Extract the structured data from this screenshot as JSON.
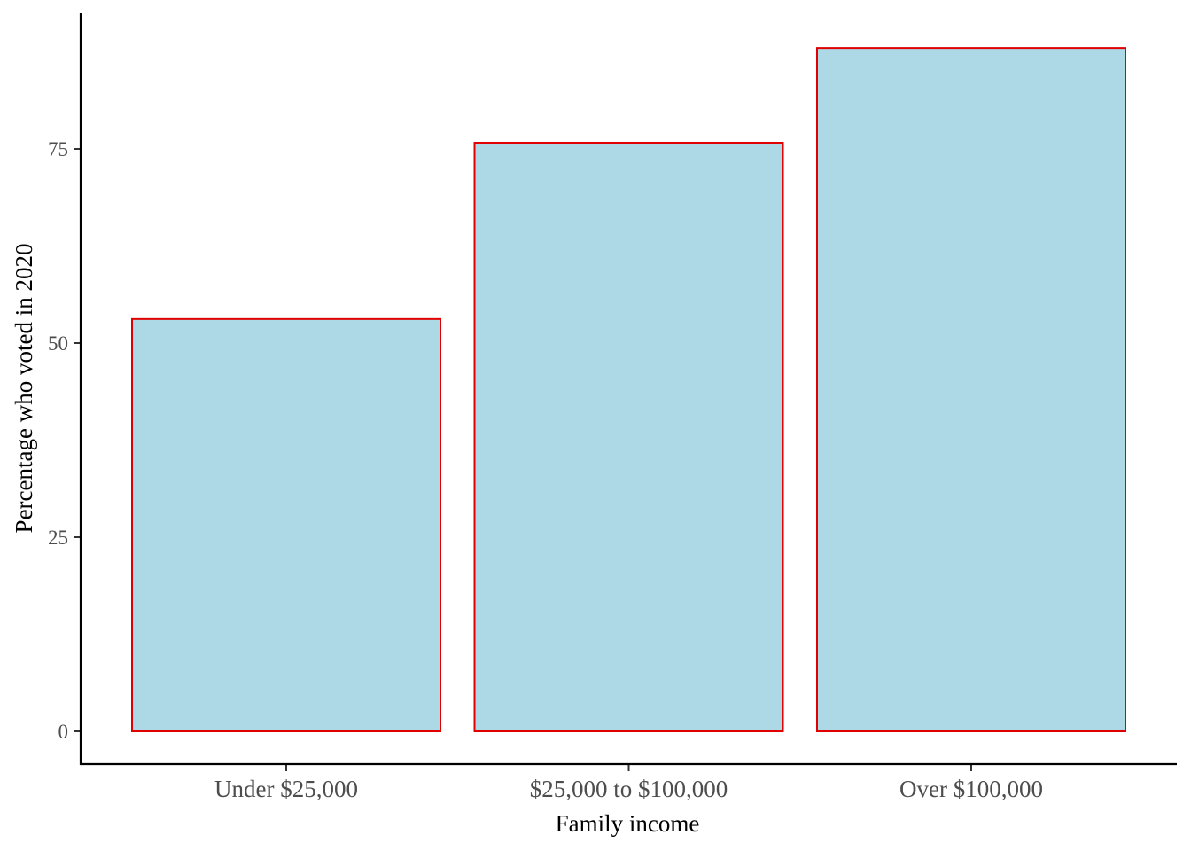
{
  "chart_data": {
    "type": "bar",
    "title": "",
    "xlabel": "Family income",
    "ylabel": "Percentage who voted in 2020",
    "categories": [
      "Under $25,000",
      "$25,000 to $100,000",
      "Over $100,000"
    ],
    "values": [
      53.1,
      75.8,
      88.0
    ],
    "ylim": [
      0,
      92.5
    ],
    "yticks": [
      0,
      25,
      50,
      75
    ],
    "ytick_labels": [
      "0",
      "25",
      "50",
      "75"
    ],
    "grid": false,
    "legend": "none",
    "colors": {
      "bar_fill": "#add8e6",
      "bar_stroke": "#e00000",
      "axis": "#000000",
      "tick_label": "#4d4d4d"
    }
  }
}
